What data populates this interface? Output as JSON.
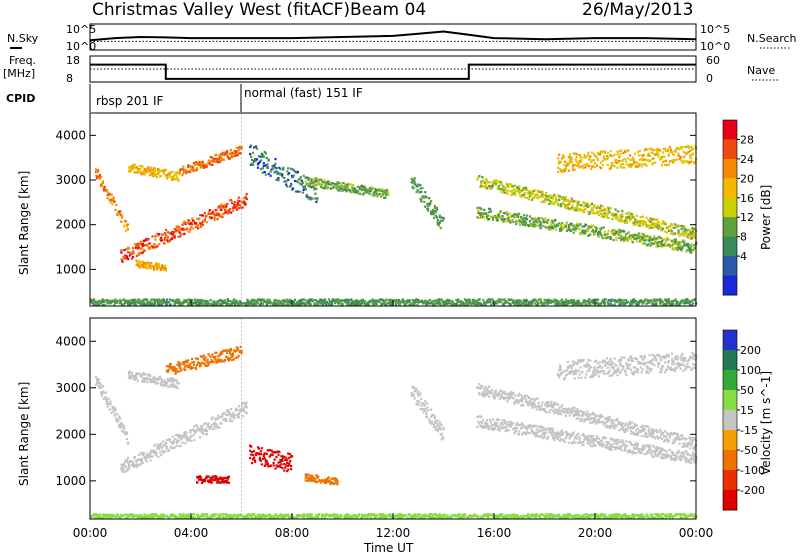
{
  "header": {
    "station": "Christmas Valley West (fitACF)",
    "beam": "Beam 04",
    "date": "26/May/2013"
  },
  "noise_panel": {
    "left_label": "N.Sky",
    "right_label": "N.Search",
    "yticks_left": [
      "10^5",
      "10^0"
    ],
    "yticks_right": [
      "10^5",
      "10^0"
    ]
  },
  "freq_panel": {
    "left_label_1": "Freq.",
    "left_label_2": "[MHz]",
    "right_label": "Nave",
    "yticks_left": [
      "18",
      "8"
    ],
    "yticks_right": [
      "60",
      "0"
    ]
  },
  "cpid": {
    "label": "CPID",
    "modes": [
      {
        "text": "rbsp 201 IF",
        "start_hour": 0,
        "end_hour": 6
      },
      {
        "text": "normal (fast) 151 IF",
        "start_hour": 6,
        "end_hour": 24
      }
    ]
  },
  "axes": {
    "ylabel": "Slant Range [km]",
    "xlabel": "Time UT",
    "xticks": [
      "00:00",
      "04:00",
      "08:00",
      "12:00",
      "16:00",
      "20:00",
      "00:00"
    ],
    "yticks": [
      "1000",
      "2000",
      "3000",
      "4000"
    ]
  },
  "colorbars": {
    "power": {
      "label": "Power [dB]",
      "ticks": [
        "28",
        "24",
        "20",
        "16",
        "12",
        "8",
        "4"
      ],
      "colors": [
        "#e8001a",
        "#f04a10",
        "#f58a00",
        "#f4b800",
        "#cbd000",
        "#5fa040",
        "#3a8a5a",
        "#2a5aa8",
        "#1a2ad8"
      ]
    },
    "velocity": {
      "label": "Velocity [m s^-1]",
      "ticks": [
        "200",
        "100",
        "50",
        "15",
        "-15",
        "-50",
        "-100",
        "-200"
      ],
      "colors": [
        "#2233cc",
        "#227755",
        "#33aa33",
        "#88dd44",
        "#c4c4c4",
        "#f5a000",
        "#f07000",
        "#e83000",
        "#dd0000"
      ]
    }
  },
  "chart_data": [
    {
      "type": "line",
      "title": "N.Sky / N.Search",
      "x_units": "hour UT",
      "ylim": [
        "10^0",
        "10^5"
      ],
      "series": [
        {
          "name": "N.Sky",
          "x": [
            0,
            1,
            2,
            3,
            4,
            5,
            6,
            8,
            10,
            12,
            13,
            14,
            15,
            16,
            18,
            20,
            22,
            24
          ],
          "y": [
            0.35,
            0.45,
            0.5,
            0.48,
            0.45,
            0.45,
            0.45,
            0.45,
            0.5,
            0.55,
            0.65,
            0.75,
            0.6,
            0.45,
            0.4,
            0.45,
            0.45,
            0.4
          ]
        },
        {
          "name": "N.Search",
          "x": [
            0,
            4,
            8,
            12,
            16,
            20,
            24
          ],
          "y": [
            0.3,
            0.3,
            0.3,
            0.3,
            0.3,
            0.3,
            0.3
          ]
        }
      ]
    },
    {
      "type": "line",
      "title": "Freq. / Nave",
      "x_units": "hour UT",
      "series": [
        {
          "name": "Freq.",
          "x": [
            0,
            3,
            3,
            15,
            15,
            24
          ],
          "y": [
            15,
            15,
            8.5,
            8.5,
            15,
            15
          ]
        },
        {
          "name": "Nave",
          "x": [
            0,
            24
          ],
          "y": [
            30,
            30
          ]
        }
      ]
    },
    {
      "type": "heatmap",
      "title": "Power",
      "xlabel": "Time UT",
      "ylabel": "Slant Range [km]",
      "xlim": [
        0,
        24
      ],
      "ylim": [
        180,
        4500
      ],
      "units": "dB",
      "features": [
        {
          "start_hour": 0.2,
          "end_hour": 1.5,
          "start_km": 3200,
          "end_km": 1900,
          "thickness_km": 250,
          "value": 22
        },
        {
          "start_hour": 1.5,
          "end_hour": 3.5,
          "start_km": 3300,
          "end_km": 3100,
          "thickness_km": 200,
          "value": 18
        },
        {
          "start_hour": 1.2,
          "end_hour": 6.2,
          "start_km": 1300,
          "end_km": 2600,
          "thickness_km": 300,
          "value": 26
        },
        {
          "start_hour": 3.5,
          "end_hour": 6.0,
          "start_km": 3200,
          "end_km": 3700,
          "thickness_km": 200,
          "value": 24
        },
        {
          "start_hour": 1.8,
          "end_hour": 3.0,
          "start_km": 1150,
          "end_km": 1050,
          "thickness_km": 150,
          "value": 20
        },
        {
          "start_hour": 6.3,
          "end_hour": 9.0,
          "start_km": 3600,
          "end_km": 2700,
          "thickness_km": 500,
          "value": 6
        },
        {
          "start_hour": 8.5,
          "end_hour": 11.8,
          "start_km": 3000,
          "end_km": 2700,
          "thickness_km": 200,
          "value": 10
        },
        {
          "start_hour": 12.7,
          "end_hour": 14.0,
          "start_km": 3000,
          "end_km": 2000,
          "thickness_km": 350,
          "value": 8
        },
        {
          "start_hour": 15.3,
          "end_hour": 24.0,
          "start_km": 3000,
          "end_km": 1800,
          "thickness_km": 250,
          "value": 14
        },
        {
          "start_hour": 15.3,
          "end_hour": 24.0,
          "start_km": 2300,
          "end_km": 1500,
          "thickness_km": 250,
          "value": 10
        },
        {
          "start_hour": 18.5,
          "end_hour": 24.0,
          "start_km": 3400,
          "end_km": 3600,
          "thickness_km": 400,
          "value": 18
        },
        {
          "start_hour": 0.0,
          "end_hour": 24.0,
          "start_km": 280,
          "end_km": 280,
          "thickness_km": 150,
          "value": 8
        }
      ]
    },
    {
      "type": "heatmap",
      "title": "Velocity",
      "xlabel": "Time UT",
      "ylabel": "Slant Range [km]",
      "xlim": [
        0,
        24
      ],
      "ylim": [
        180,
        4500
      ],
      "units": "m s^-1",
      "features": [
        {
          "start_hour": 0.2,
          "end_hour": 1.5,
          "start_km": 3200,
          "end_km": 1900,
          "thickness_km": 250,
          "value": 0
        },
        {
          "start_hour": 1.5,
          "end_hour": 3.5,
          "start_km": 3300,
          "end_km": 3100,
          "thickness_km": 200,
          "value": 0
        },
        {
          "start_hour": 1.2,
          "end_hour": 6.2,
          "start_km": 1300,
          "end_km": 2600,
          "thickness_km": 300,
          "value": 0
        },
        {
          "start_hour": 3.0,
          "end_hour": 6.0,
          "start_km": 3400,
          "end_km": 3800,
          "thickness_km": 250,
          "value": -60
        },
        {
          "start_hour": 4.2,
          "end_hour": 5.5,
          "start_km": 1050,
          "end_km": 1050,
          "thickness_km": 150,
          "value": -250
        },
        {
          "start_hour": 6.3,
          "end_hour": 8.0,
          "start_km": 1600,
          "end_km": 1400,
          "thickness_km": 400,
          "value": -250
        },
        {
          "start_hour": 8.5,
          "end_hour": 9.8,
          "start_km": 1100,
          "end_km": 1000,
          "thickness_km": 150,
          "value": -80
        },
        {
          "start_hour": 12.7,
          "end_hour": 14.0,
          "start_km": 3000,
          "end_km": 2000,
          "thickness_km": 350,
          "value": 0
        },
        {
          "start_hour": 15.3,
          "end_hour": 24.0,
          "start_km": 3000,
          "end_km": 1800,
          "thickness_km": 250,
          "value": 0
        },
        {
          "start_hour": 15.3,
          "end_hour": 24.0,
          "start_km": 2300,
          "end_km": 1500,
          "thickness_km": 250,
          "value": 0
        },
        {
          "start_hour": 18.5,
          "end_hour": 24.0,
          "start_km": 3400,
          "end_km": 3600,
          "thickness_km": 400,
          "value": 0
        },
        {
          "start_hour": 0.0,
          "end_hour": 24.0,
          "start_km": 250,
          "end_km": 250,
          "thickness_km": 120,
          "value": 30
        }
      ]
    }
  ]
}
